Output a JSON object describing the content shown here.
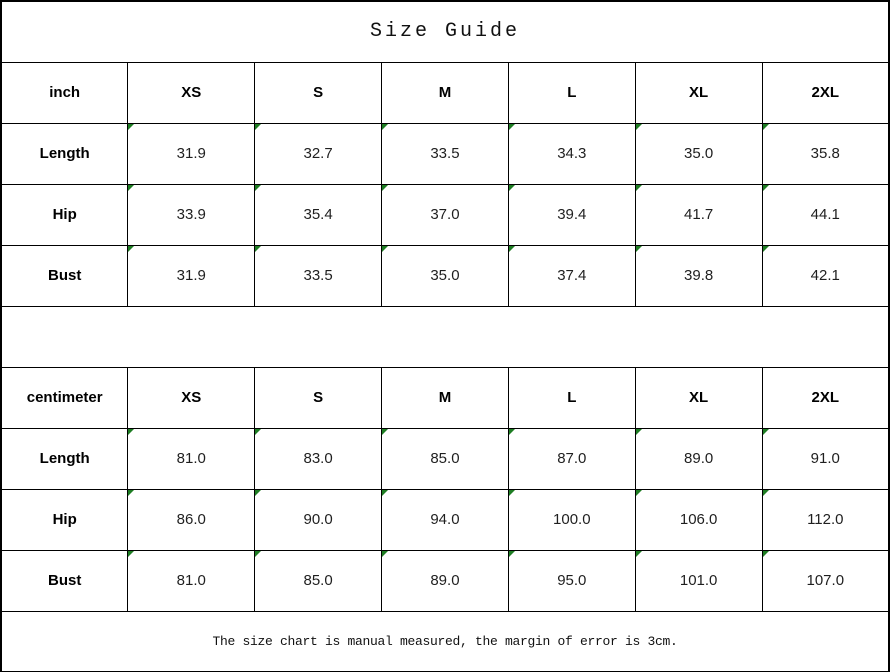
{
  "chart_data": {
    "type": "table",
    "title": "Size Guide",
    "note": "The size chart is manual measured, the margin of error is 3cm.",
    "tables": [
      {
        "unit_label": "inch",
        "sizes": [
          "XS",
          "S",
          "M",
          "L",
          "XL",
          "2XL"
        ],
        "rows": [
          {
            "label": "Length",
            "values": [
              "31.9",
              "32.7",
              "33.5",
              "34.3",
              "35.0",
              "35.8"
            ]
          },
          {
            "label": "Hip",
            "values": [
              "33.9",
              "35.4",
              "37.0",
              "39.4",
              "41.7",
              "44.1"
            ]
          },
          {
            "label": "Bust",
            "values": [
              "31.9",
              "33.5",
              "35.0",
              "37.4",
              "39.8",
              "42.1"
            ]
          }
        ]
      },
      {
        "unit_label": "centimeter",
        "sizes": [
          "XS",
          "S",
          "M",
          "L",
          "XL",
          "2XL"
        ],
        "rows": [
          {
            "label": "Length",
            "values": [
              "81.0",
              "83.0",
              "85.0",
              "87.0",
              "89.0",
              "91.0"
            ]
          },
          {
            "label": "Hip",
            "values": [
              "86.0",
              "90.0",
              "94.0",
              "100.0",
              "106.0",
              "112.0"
            ]
          },
          {
            "label": "Bust",
            "values": [
              "81.0",
              "85.0",
              "89.0",
              "95.0",
              "101.0",
              "107.0"
            ]
          }
        ]
      }
    ],
    "layout": {
      "columns": 7,
      "flag_cells": "all 36 size value cells have a green top-left corner triangle",
      "grid_on": true
    },
    "colors": {
      "border": "#000000",
      "background": "#ffffff",
      "flag_green": "#1e7d23",
      "text": "#1f1f1f"
    }
  }
}
